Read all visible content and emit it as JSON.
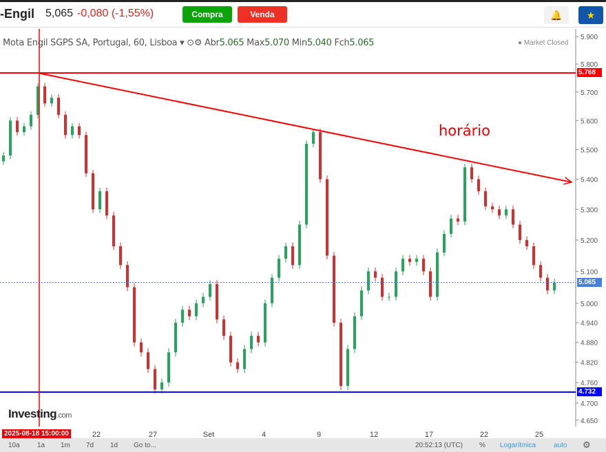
{
  "header": {
    "name": "-Engil",
    "price": "5,065",
    "change": "-0,080 (-1,55%)",
    "buy_label": "Compra",
    "sell_label": "Venda",
    "alert_icon": "bell-plus-icon",
    "star_icon": "star-icon"
  },
  "legend": {
    "title": "Mota Engil SGPS SA, Portugal, 60, Lisboa",
    "open_label": "Abr",
    "open": "5.065",
    "high_label": "Max",
    "high": "5.070",
    "low_label": "Min",
    "low": "5.040",
    "close_label": "Fch",
    "close": "5.065",
    "status": "● Market Closed"
  },
  "annotation": "horário",
  "logo": {
    "text": "Investing",
    "suffix": ".com"
  },
  "date_flag": "2025-08-18 15:00:00",
  "bottom": {
    "ranges": [
      "10a",
      "1a",
      "1m",
      "7d",
      "1d"
    ],
    "goto": "Go to...",
    "time": "20:52:13 (UTC)",
    "percent": "%",
    "log": "Logarítmica",
    "auto": "auto"
  },
  "colors": {
    "up": "#26a65b",
    "down": "#d32f2f",
    "resistance": "#ff0000",
    "support": "#0000ff",
    "last": "#4a7fe0"
  },
  "chart_data": {
    "type": "candlestick",
    "scale": "log",
    "ylim": [
      4.62,
      5.93
    ],
    "y_ticks": [
      "5.900",
      "5.800",
      "5.700",
      "5.600",
      "5.500",
      "5.400",
      "5.300",
      "5.200",
      "5.100",
      "5.000",
      "4.940",
      "4.880",
      "4.820",
      "4.760",
      "4.700",
      "4.650"
    ],
    "x_ticks": [
      {
        "label": "22",
        "index": 13.5
      },
      {
        "label": "27",
        "index": 21.7
      },
      {
        "label": "Set",
        "index": 29.8
      },
      {
        "label": "4",
        "index": 37.8
      },
      {
        "label": "9",
        "index": 45.8
      },
      {
        "label": "12",
        "index": 53.8
      },
      {
        "label": "17",
        "index": 61.8
      },
      {
        "label": "22",
        "index": 69.8
      },
      {
        "label": "25",
        "index": 77.8
      }
    ],
    "closes": [
      5.48,
      5.6,
      5.56,
      5.58,
      5.62,
      5.72,
      5.66,
      5.68,
      5.62,
      5.55,
      5.58,
      5.55,
      5.42,
      5.3,
      5.36,
      5.28,
      5.18,
      5.12,
      5.05,
      4.88,
      4.85,
      4.8,
      4.74,
      4.76,
      4.85,
      4.94,
      4.98,
      4.96,
      5.0,
      5.02,
      5.06,
      4.95,
      4.9,
      4.82,
      4.8,
      4.86,
      4.9,
      4.88,
      5.0,
      5.08,
      5.14,
      5.18,
      5.12,
      5.25,
      5.52,
      5.56,
      5.4,
      5.15,
      4.94,
      4.75,
      4.86,
      4.96,
      5.04,
      5.1,
      5.08,
      5.02,
      5.02,
      5.1,
      5.14,
      5.13,
      5.14,
      5.1,
      5.02,
      5.16,
      5.22,
      5.27,
      5.26,
      5.44,
      5.4,
      5.36,
      5.31,
      5.3,
      5.28,
      5.3,
      5.25,
      5.2,
      5.18,
      5.12,
      5.08,
      5.04,
      5.065
    ],
    "resistance_level": "5.768",
    "support_level": "4.732",
    "last_price": "5.065",
    "trendline": {
      "from": {
        "index": 5,
        "price": 5.768
      },
      "to": {
        "index": 82,
        "price": 5.39
      }
    },
    "marker_index": 5.2
  }
}
